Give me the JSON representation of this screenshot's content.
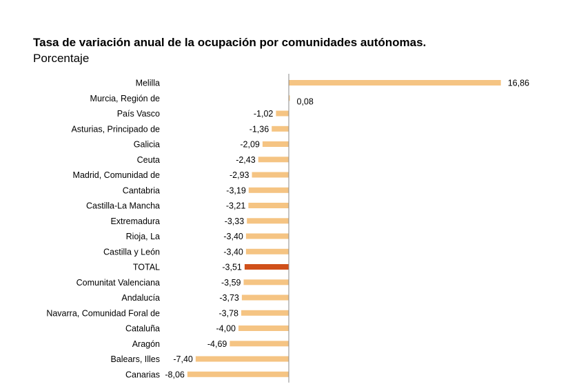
{
  "chart_data": {
    "type": "bar",
    "orientation": "horizontal",
    "title": "Tasa de variación anual de la ocupación por comunidades autónomas.",
    "subtitle": "Porcentaje",
    "xlabel": "",
    "ylabel": "",
    "grid": false,
    "legend": "none",
    "categories": [
      "Melilla",
      "Murcia, Región de",
      "País Vasco",
      "Asturias, Principado de",
      "Galicia",
      "Ceuta",
      "Madrid, Comunidad de",
      "Cantabria",
      "Castilla-La Mancha",
      "Extremadura",
      "Rioja, La",
      "Castilla y León",
      "TOTAL",
      "Comunitat Valenciana",
      "Andalucía",
      "Navarra, Comunidad Foral de",
      "Cataluña",
      "Aragón",
      "Balears, Illes",
      "Canarias"
    ],
    "values": [
      16.86,
      0.08,
      -1.02,
      -1.36,
      -2.09,
      -2.43,
      -2.93,
      -3.19,
      -3.21,
      -3.33,
      -3.4,
      -3.4,
      -3.51,
      -3.59,
      -3.73,
      -3.78,
      -4.0,
      -4.69,
      -7.4,
      -8.06
    ],
    "value_labels": [
      "16,86",
      "0,08",
      "-1,02",
      "-1,36",
      "-2,09",
      "-2,43",
      "-2,93",
      "-3,19",
      "-3,21",
      "-3,33",
      "-3,40",
      "-3,40",
      "-3,51",
      "-3,59",
      "-3,73",
      "-3,78",
      "-4,00",
      "-4,69",
      "-7,40",
      "-8,06"
    ],
    "highlight_category": "TOTAL",
    "colors": {
      "bar": "#F5C483",
      "highlight": "#D0501A",
      "axis": "#888888"
    }
  }
}
